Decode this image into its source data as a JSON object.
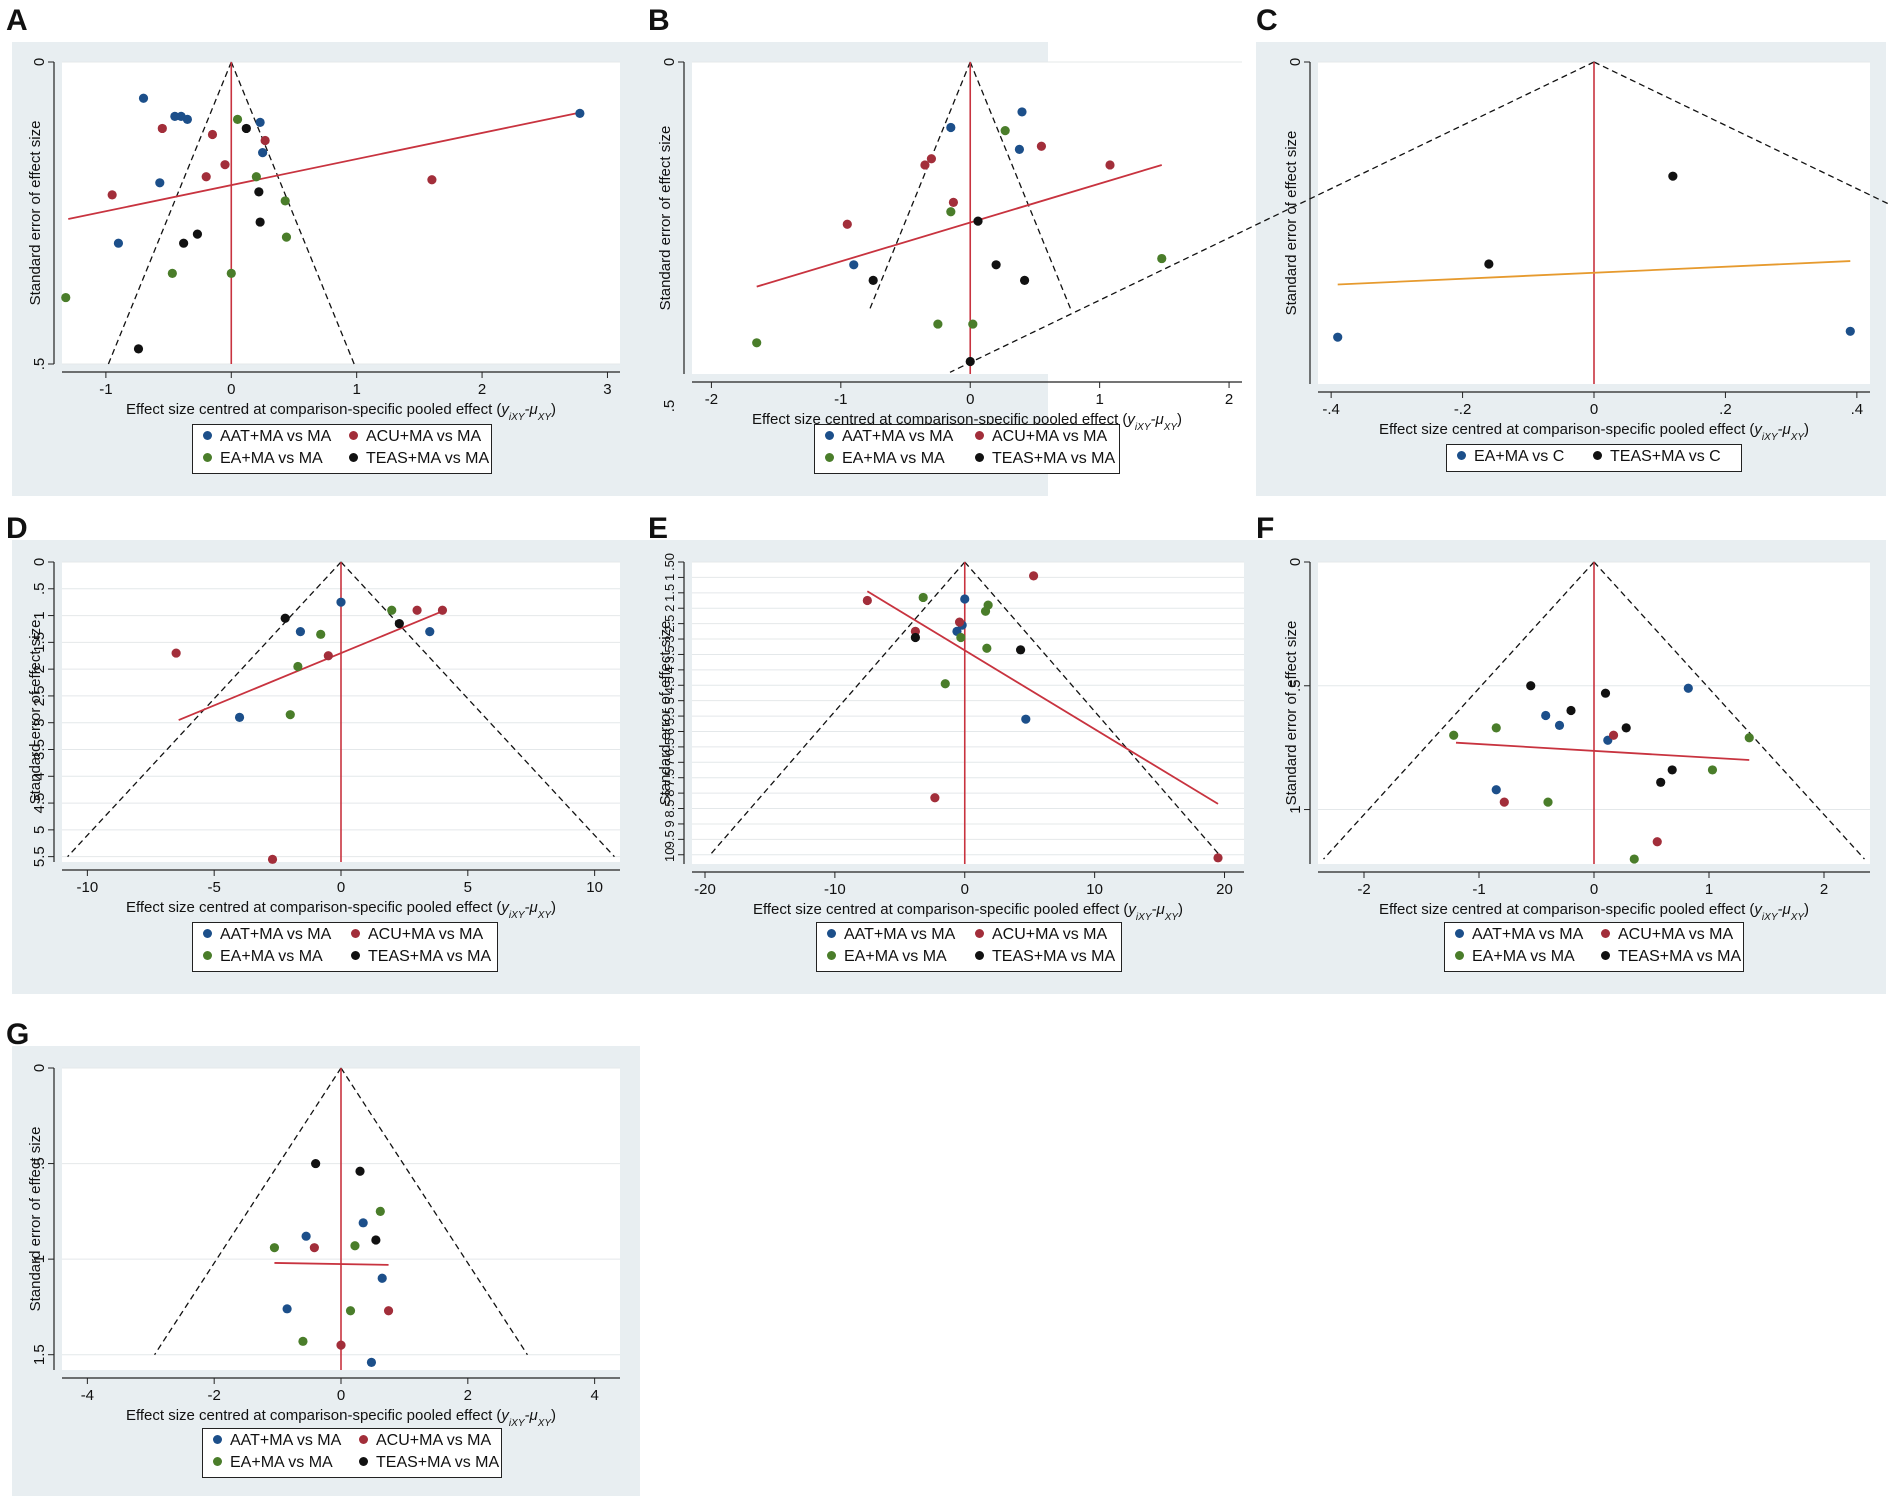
{
  "axis_text": {
    "ylabel": "Standard error of effect size",
    "xlabel_prefix": "Effect size centred at comparison-specific pooled effect (",
    "xlabel_math": "y",
    "xlabel_sub1": "iXY",
    "xlabel_mid": "-μ",
    "xlabel_sub2": "XY",
    "xlabel_suffix": ")"
  },
  "colors": {
    "AAT+MA vs MA": "#1c4f8a",
    "ACU+MA vs MA": "#a22e3a",
    "EA+MA vs MA": "#4a7d2a",
    "TEAS+MA vs MA": "#111111",
    "EA+MA vs C": "#1c4f8a",
    "TEAS+MA vs C": "#111111",
    "panel_bg": "#e8eef1",
    "red_line": "#c8333f",
    "reg_line": "#c8333f",
    "reg_line_c": "#e69a2e"
  },
  "chart_data": [
    {
      "panel": "A",
      "type": "scatter",
      "xlim": [
        -1.35,
        3.1
      ],
      "ylim": [
        0,
        0.5
      ],
      "xticks": [
        -1,
        0,
        1,
        2,
        3
      ],
      "xtick_labels": [
        "-1",
        "0",
        "1",
        "2",
        "3"
      ],
      "yticks": [
        0,
        0.5
      ],
      "ytick_labels": [
        "0",
        ".5"
      ],
      "funnel_se": 0.5,
      "regression": {
        "x": [
          -1.3,
          2.75
        ],
        "y": [
          0.26,
          0.085
        ]
      },
      "legend": [
        "AAT+MA vs MA",
        "ACU+MA vs MA",
        "EA+MA vs MA",
        "TEAS+MA vs MA"
      ],
      "series": [
        {
          "name": "AAT+MA vs MA",
          "x": [
            -0.7,
            -0.45,
            -0.4,
            -0.35,
            0.23,
            0.25,
            -0.57,
            -0.9,
            2.78
          ],
          "y": [
            0.06,
            0.09,
            0.09,
            0.095,
            0.1,
            0.15,
            0.2,
            0.3,
            0.085
          ]
        },
        {
          "name": "ACU+MA vs MA",
          "x": [
            -0.55,
            -0.15,
            0.27,
            -0.05,
            -0.2,
            -0.95,
            1.6
          ],
          "y": [
            0.11,
            0.12,
            0.13,
            0.17,
            0.19,
            0.22,
            0.195
          ]
        },
        {
          "name": "EA+MA vs MA",
          "x": [
            0.05,
            0.2,
            0.43,
            0.44,
            0.0,
            -0.47,
            -1.32
          ],
          "y": [
            0.095,
            0.19,
            0.23,
            0.29,
            0.35,
            0.35,
            0.39
          ]
        },
        {
          "name": "TEAS+MA vs MA",
          "x": [
            0.12,
            0.22,
            0.23,
            -0.27,
            -0.38,
            -0.74
          ],
          "y": [
            0.11,
            0.215,
            0.265,
            0.285,
            0.3,
            0.475
          ]
        }
      ]
    },
    {
      "panel": "B",
      "type": "scatter",
      "xlim": [
        -2.15,
        2.1
      ],
      "ylim": [
        0,
        0.5
      ],
      "xticks": [
        -2,
        -1,
        0,
        1,
        2
      ],
      "xtick_labels": [
        "-2",
        "-1",
        "0",
        "1",
        "2"
      ],
      "yticks": [
        0
      ],
      "ytick_labels": [
        "0"
      ],
      "stray_label": ".5",
      "funnel_se": 0.4,
      "regression": {
        "x": [
          -1.65,
          1.48
        ],
        "y": [
          0.36,
          0.165
        ]
      },
      "legend": [
        "AAT+MA vs MA",
        "ACU+MA vs MA",
        "EA+MA vs MA",
        "TEAS+MA vs MA"
      ],
      "series": [
        {
          "name": "AAT+MA vs MA",
          "x": [
            -0.15,
            0.4,
            0.38,
            -0.9
          ],
          "y": [
            0.105,
            0.08,
            0.14,
            0.325
          ]
        },
        {
          "name": "ACU+MA vs MA",
          "x": [
            0.55,
            -0.3,
            -0.35,
            1.08,
            -0.13,
            -0.95
          ],
          "y": [
            0.135,
            0.155,
            0.165,
            0.165,
            0.225,
            0.26
          ]
        },
        {
          "name": "EA+MA vs MA",
          "x": [
            0.27,
            -0.15,
            1.48,
            -0.25,
            0.02,
            -1.65
          ],
          "y": [
            0.11,
            0.24,
            0.315,
            0.42,
            0.42,
            0.45
          ]
        },
        {
          "name": "TEAS+MA vs MA",
          "x": [
            0.06,
            0.2,
            -0.75,
            0.42,
            0.0
          ],
          "y": [
            0.255,
            0.325,
            0.35,
            0.35,
            0.48
          ]
        }
      ]
    },
    {
      "panel": "C",
      "type": "scatter",
      "xlim": [
        -0.42,
        0.42
      ],
      "ylim": [
        0,
        0.55
      ],
      "xticks": [
        -0.4,
        -0.2,
        0,
        0.2,
        0.4
      ],
      "xtick_labels": [
        "-.4",
        "-.2",
        "0",
        ".2",
        ".4"
      ],
      "yticks": [
        0
      ],
      "ytick_labels": [
        "0"
      ],
      "funnel_se": 0.5,
      "funnel_ymax": 0.53,
      "regression": {
        "x": [
          -0.39,
          0.39
        ],
        "y": [
          0.38,
          0.34
        ]
      },
      "legend": [
        "EA+MA vs C",
        "TEAS+MA vs C"
      ],
      "series": [
        {
          "name": "EA+MA vs C",
          "x": [
            -0.39,
            0.39
          ],
          "y": [
            0.47,
            0.46
          ]
        },
        {
          "name": "TEAS+MA vs C",
          "x": [
            0.12,
            -0.16
          ],
          "y": [
            0.195,
            0.345
          ]
        }
      ]
    },
    {
      "panel": "D",
      "type": "scatter",
      "xlim": [
        -11,
        11
      ],
      "ylim": [
        0,
        5.6
      ],
      "xticks": [
        -10,
        -5,
        0,
        5,
        10
      ],
      "xtick_labels": [
        "-10",
        "-5",
        "0",
        "5",
        "10"
      ],
      "yticks": [
        0,
        0.5,
        1,
        1.5,
        2,
        2.5,
        3,
        3.5,
        4,
        4.5,
        5,
        5.5
      ],
      "ytick_labels": [
        "0",
        ".5",
        "1",
        "1.5",
        "2",
        "2.5",
        "3",
        "3.5",
        "4",
        "4.5",
        "5",
        "5.5"
      ],
      "funnel_se": 5.5,
      "regression": {
        "x": [
          -6.4,
          4.1
        ],
        "y": [
          2.95,
          0.9
        ]
      },
      "legend": [
        "AAT+MA vs MA",
        "ACU+MA vs MA",
        "EA+MA vs MA",
        "TEAS+MA vs MA"
      ],
      "series": [
        {
          "name": "AAT+MA vs MA",
          "x": [
            0.0,
            -1.6,
            3.5,
            -4.0
          ],
          "y": [
            0.75,
            1.3,
            1.3,
            2.9
          ]
        },
        {
          "name": "ACU+MA vs MA",
          "x": [
            3.0,
            4.0,
            -0.5,
            -6.5,
            -2.7
          ],
          "y": [
            0.9,
            0.9,
            1.75,
            1.7,
            5.55
          ]
        },
        {
          "name": "EA+MA vs MA",
          "x": [
            2.0,
            -0.8,
            -1.7,
            -2.0
          ],
          "y": [
            0.9,
            1.35,
            1.95,
            2.85
          ]
        },
        {
          "name": "TEAS+MA vs MA",
          "x": [
            -2.2,
            2.3
          ],
          "y": [
            1.05,
            1.15
          ]
        }
      ]
    },
    {
      "panel": "E",
      "type": "scatter",
      "xlim": [
        -21,
        21.5
      ],
      "ylim": [
        0.5,
        10.3
      ],
      "xticks": [
        -20,
        -10,
        0,
        10,
        20
      ],
      "xtick_labels": [
        "-20",
        "-10",
        "0",
        "10",
        "20"
      ],
      "yticks": [
        0.5,
        1,
        1.5,
        2,
        2.5,
        3,
        3.5,
        4,
        4.5,
        5,
        5.5,
        6,
        6.5,
        7,
        7.5,
        8,
        8.5,
        9,
        9.5,
        10
      ],
      "ytick_labels": [
        ".50",
        "1",
        "1.5",
        "2",
        "2.5",
        "3",
        "3.5",
        "4",
        "4.5",
        "5",
        "5.5",
        "6",
        "6.5",
        "7",
        "7.5",
        "8",
        "8.5",
        "9",
        "9.5",
        "10"
      ],
      "funnel_se": 10,
      "regression": {
        "x": [
          -7.5,
          19.5
        ],
        "y": [
          1.45,
          8.35
        ]
      },
      "legend": [
        "AAT+MA vs MA",
        "ACU+MA vs MA",
        "EA+MA vs MA",
        "TEAS+MA vs MA"
      ],
      "series": [
        {
          "name": "AAT+MA vs MA",
          "x": [
            0.0,
            -0.2,
            -0.6,
            4.7
          ],
          "y": [
            1.7,
            2.55,
            2.75,
            5.6
          ]
        },
        {
          "name": "ACU+MA vs MA",
          "x": [
            5.3,
            -7.5,
            -0.4,
            -3.8,
            -2.3,
            19.5
          ],
          "y": [
            0.95,
            1.75,
            2.45,
            2.75,
            8.15,
            10.1
          ]
        },
        {
          "name": "EA+MA vs MA",
          "x": [
            -3.2,
            1.8,
            1.6,
            -0.3,
            1.7,
            -1.5
          ],
          "y": [
            1.65,
            1.9,
            2.1,
            2.95,
            3.3,
            4.45
          ]
        },
        {
          "name": "TEAS+MA vs MA",
          "x": [
            -3.8,
            4.3
          ],
          "y": [
            2.95,
            3.35
          ]
        }
      ]
    },
    {
      "panel": "F",
      "type": "scatter",
      "xlim": [
        -2.4,
        2.4
      ],
      "ylim": [
        0,
        1.22
      ],
      "xticks": [
        -2,
        -1,
        0,
        1,
        2
      ],
      "xtick_labels": [
        "-2",
        "-1",
        "0",
        "1",
        "2"
      ],
      "yticks": [
        0,
        0.5,
        1
      ],
      "ytick_labels": [
        "0",
        ".5",
        "1"
      ],
      "funnel_se": 1.2,
      "regression": {
        "x": [
          -1.2,
          1.35
        ],
        "y": [
          0.73,
          0.8
        ]
      },
      "legend": [
        "AAT+MA vs MA",
        "ACU+MA vs MA",
        "EA+MA vs MA",
        "TEAS+MA vs MA"
      ],
      "series": [
        {
          "name": "AAT+MA vs MA",
          "x": [
            0.82,
            -0.42,
            -0.3,
            0.12,
            -0.85
          ],
          "y": [
            0.51,
            0.62,
            0.66,
            0.72,
            0.92
          ]
        },
        {
          "name": "ACU+MA vs MA",
          "x": [
            0.17,
            -0.78,
            0.55
          ],
          "y": [
            0.7,
            0.97,
            1.13
          ]
        },
        {
          "name": "EA+MA vs MA",
          "x": [
            -0.85,
            -1.22,
            1.35,
            1.03,
            -0.4,
            0.35
          ],
          "y": [
            0.67,
            0.7,
            0.71,
            0.84,
            0.97,
            1.2
          ]
        },
        {
          "name": "TEAS+MA vs MA",
          "x": [
            -0.55,
            0.1,
            -0.2,
            0.28,
            0.68,
            0.58
          ],
          "y": [
            0.5,
            0.53,
            0.6,
            0.67,
            0.84,
            0.89
          ]
        }
      ]
    },
    {
      "panel": "G",
      "type": "scatter",
      "xlim": [
        -4.4,
        4.4
      ],
      "ylim": [
        0,
        1.58
      ],
      "xticks": [
        -4,
        -2,
        0,
        2,
        4
      ],
      "xtick_labels": [
        "-4",
        "-2",
        "0",
        "2",
        "4"
      ],
      "yticks": [
        0,
        0.5,
        1,
        1.5
      ],
      "ytick_labels": [
        "0",
        ".5",
        "1",
        "1.5"
      ],
      "funnel_se": 1.5,
      "regression": {
        "x": [
          -1.05,
          0.75
        ],
        "y": [
          1.02,
          1.03
        ]
      },
      "legend": [
        "AAT+MA vs MA",
        "ACU+MA vs MA",
        "EA+MA vs MA",
        "TEAS+MA vs MA"
      ],
      "series": [
        {
          "name": "AAT+MA vs MA",
          "x": [
            0.35,
            -0.55,
            0.65,
            -0.85,
            0.48
          ],
          "y": [
            0.81,
            0.88,
            1.1,
            1.26,
            1.54
          ]
        },
        {
          "name": "ACU+MA vs MA",
          "x": [
            -0.42,
            0.75,
            0.0
          ],
          "y": [
            0.94,
            1.27,
            1.45
          ]
        },
        {
          "name": "EA+MA vs MA",
          "x": [
            0.62,
            0.22,
            -1.05,
            0.15,
            -0.6
          ],
          "y": [
            0.75,
            0.93,
            0.94,
            1.27,
            1.43
          ]
        },
        {
          "name": "TEAS+MA vs MA",
          "x": [
            -0.4,
            0.3,
            0.55
          ],
          "y": [
            0.5,
            0.54,
            0.9
          ]
        }
      ]
    }
  ]
}
